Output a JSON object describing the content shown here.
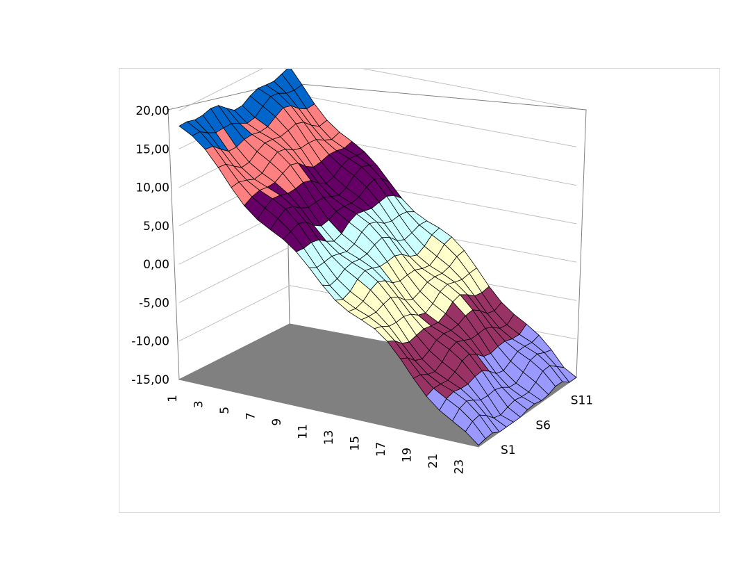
{
  "chart_data": {
    "type": "surface",
    "title": "",
    "z_axis": {
      "range": [
        -15,
        20
      ],
      "ticks": [
        "-15,00",
        "-10,00",
        "-5,00",
        "0,00",
        "5,00",
        "10,00",
        "15,00",
        "20,00"
      ],
      "tick_values": [
        -15,
        -10,
        -5,
        0,
        5,
        10,
        15,
        20
      ]
    },
    "x_axis": {
      "categories_count": 24,
      "tick_labels": [
        "1",
        "3",
        "5",
        "7",
        "9",
        "11",
        "13",
        "15",
        "17",
        "19",
        "21",
        "23"
      ]
    },
    "series_axis": {
      "series_count": 15,
      "tick_labels": [
        "S1",
        "S6",
        "S11"
      ]
    },
    "bands": [
      {
        "range": [
          -15,
          -10
        ],
        "color": "#9999ff"
      },
      {
        "range": [
          -10,
          -5
        ],
        "color": "#993366"
      },
      {
        "range": [
          -5,
          0
        ],
        "color": "#ffffcc"
      },
      {
        "range": [
          0,
          5
        ],
        "color": "#ccffff"
      },
      {
        "range": [
          5,
          10
        ],
        "color": "#660066"
      },
      {
        "range": [
          10,
          15
        ],
        "color": "#ff8080"
      },
      {
        "range": [
          15,
          20
        ],
        "color": "#0066cc"
      }
    ],
    "surface_description": "values decrease roughly linearly from about 17 at category 1 to about -15 at category 24, nearly constant across series",
    "approx_values": {
      "start": 17.5,
      "end": -15
    },
    "grid": true,
    "floor_color": "#808080"
  }
}
